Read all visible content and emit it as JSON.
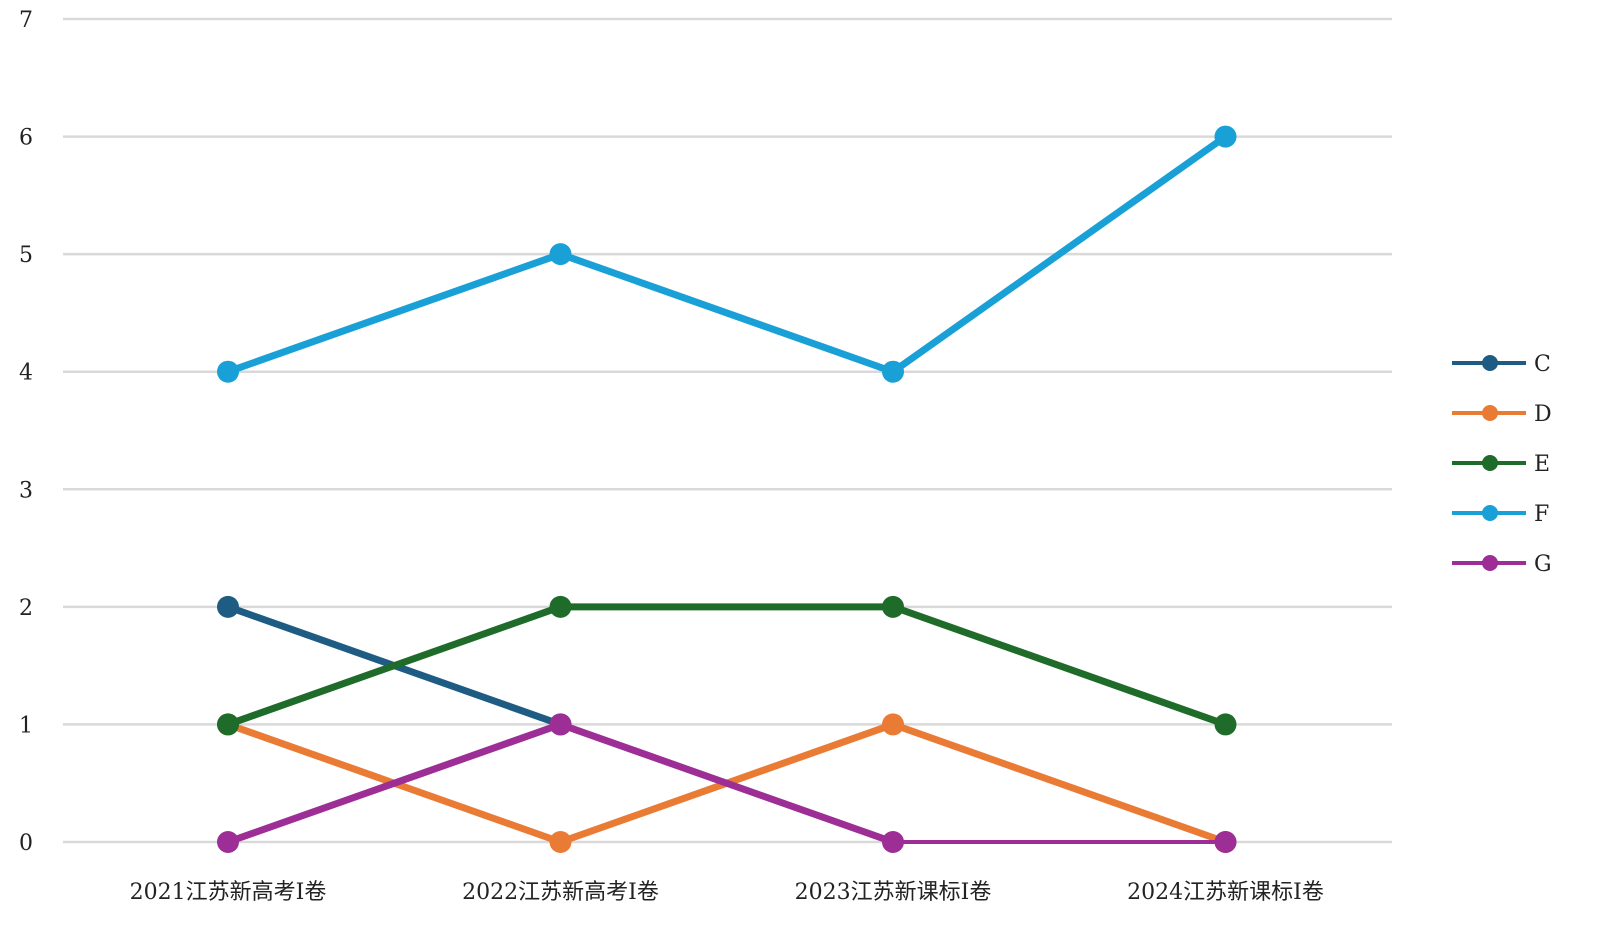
{
  "chart_data": {
    "type": "line",
    "title": "",
    "xlabel": "",
    "ylabel": "",
    "ylim": [
      0,
      7
    ],
    "yticks": [
      "0",
      "1",
      "2",
      "3",
      "4",
      "5",
      "6",
      "7"
    ],
    "grid": true,
    "legend_position": "right",
    "categories": [
      "2021江苏新高考I卷",
      "2022江苏新高考I卷",
      "2023江苏新课标I卷",
      "2024江苏新课标I卷"
    ],
    "series": [
      {
        "name": "C",
        "color": "#1f5c84",
        "values": [
          2,
          1,
          null,
          null
        ]
      },
      {
        "name": "D",
        "color": "#ea7b35",
        "values": [
          1,
          0,
          1,
          0
        ]
      },
      {
        "name": "E",
        "color": "#1e6b2a",
        "values": [
          1,
          2,
          2,
          1
        ]
      },
      {
        "name": "F",
        "color": "#19a0d6",
        "values": [
          4,
          5,
          4,
          6
        ]
      },
      {
        "name": "G",
        "color": "#9c2e96",
        "values": [
          0,
          1,
          0,
          0
        ]
      }
    ]
  }
}
